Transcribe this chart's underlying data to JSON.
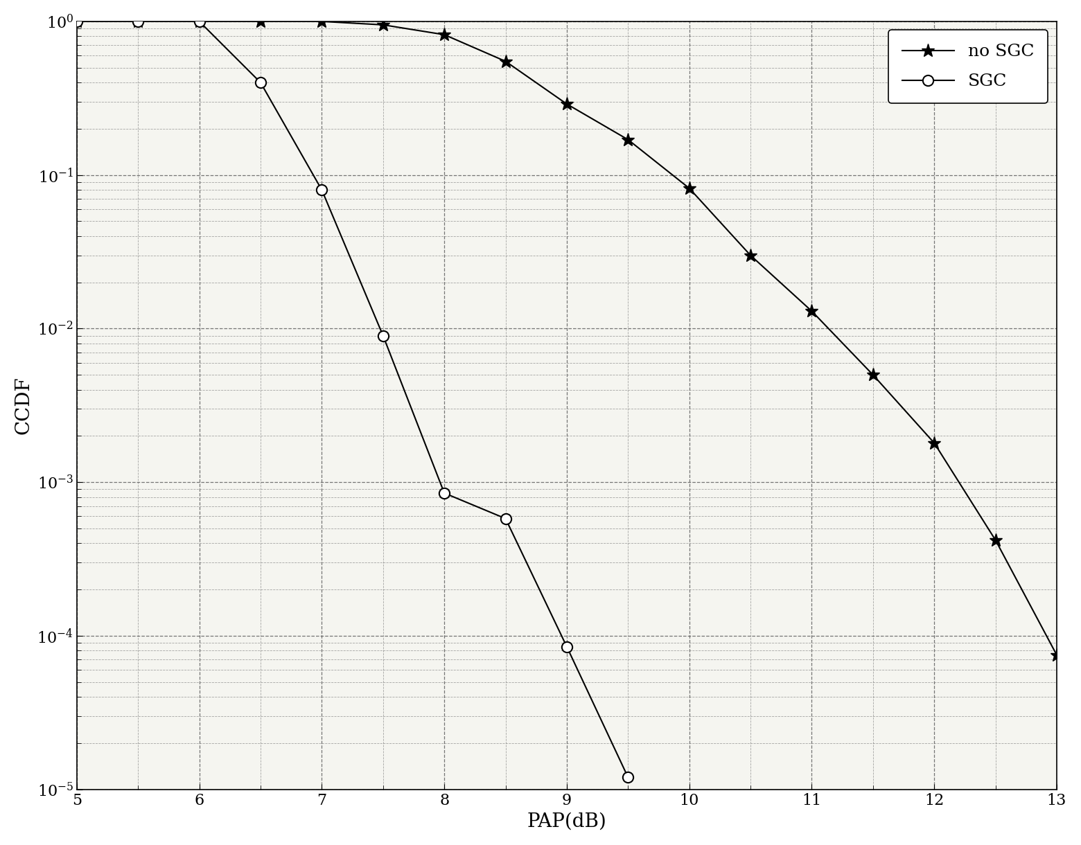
{
  "no_sgc_x": [
    5,
    5.5,
    6,
    6.5,
    7,
    7.5,
    8,
    8.5,
    9,
    9.5,
    10,
    10.5,
    11,
    11.5,
    12,
    12.5,
    13
  ],
  "no_sgc_y": [
    1.0,
    1.0,
    1.0,
    1.0,
    1.0,
    0.95,
    0.82,
    0.55,
    0.29,
    0.17,
    0.082,
    0.03,
    0.013,
    0.005,
    0.0018,
    0.00042,
    7.5e-05
  ],
  "sgc_x": [
    5,
    5.5,
    6,
    6.5,
    7,
    7.5,
    8,
    8.5,
    9,
    9.5
  ],
  "sgc_y": [
    1.0,
    1.0,
    1.0,
    0.4,
    0.08,
    0.009,
    0.00085,
    0.00058,
    8.5e-05,
    1.2e-05
  ],
  "xlabel": "PAP(dB)",
  "ylabel": "CCDF",
  "xlim": [
    5,
    13
  ],
  "ylim_log_min": -5,
  "ylim_log_max": 0,
  "legend_no_sgc": "no SGC",
  "legend_sgc": "SGC",
  "line_color": "#000000",
  "bg_color": "#f5f5f0",
  "grid_color": "#555555",
  "xticks": [
    5,
    6,
    7,
    8,
    9,
    10,
    11,
    12,
    13
  ]
}
